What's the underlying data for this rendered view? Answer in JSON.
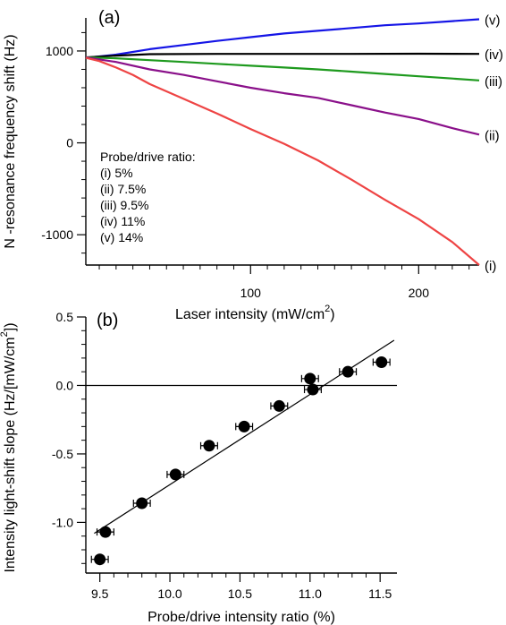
{
  "chart_data": [
    {
      "panel": "(a)",
      "type": "line",
      "xlabel": "Laser intensity (mW/cm",
      "xlabel_sup": "2",
      "xlabel_end": ")",
      "ylabel": "N -resonance frequency shift (Hz)",
      "xlim": [
        2,
        236
      ],
      "ylim": [
        -1330,
        1360
      ],
      "xticks": [
        100,
        200
      ],
      "yticks": [
        1000,
        0,
        -1000
      ],
      "grid": false,
      "legend": {
        "title": "Probe/drive ratio:",
        "entries": [
          "(i) 5%",
          "(ii) 7.5%",
          "(iii) 9.5%",
          "(iv) 11%",
          "(v) 14%"
        ],
        "position": "lower-left"
      },
      "series": [
        {
          "name": "(v)",
          "color": "#1515e6",
          "x": [
            2,
            20,
            40,
            60,
            80,
            100,
            120,
            140,
            160,
            180,
            200,
            220,
            236
          ],
          "y": [
            925,
            960,
            1020,
            1065,
            1110,
            1150,
            1190,
            1220,
            1250,
            1280,
            1300,
            1325,
            1345
          ]
        },
        {
          "name": "(iv)",
          "color": "#000000",
          "x": [
            2,
            20,
            40,
            80,
            120,
            160,
            200,
            236
          ],
          "y": [
            930,
            950,
            965,
            968,
            968,
            968,
            970,
            968
          ]
        },
        {
          "name": "(iii)",
          "color": "#1e9a1e",
          "x": [
            2,
            20,
            40,
            60,
            80,
            100,
            120,
            140,
            160,
            180,
            200,
            220,
            236
          ],
          "y": [
            930,
            920,
            900,
            880,
            860,
            840,
            820,
            800,
            775,
            750,
            725,
            700,
            680
          ]
        },
        {
          "name": "(ii)",
          "color": "#8a108a",
          "x": [
            2,
            20,
            40,
            60,
            80,
            100,
            120,
            140,
            160,
            180,
            200,
            220,
            236
          ],
          "y": [
            930,
            880,
            800,
            740,
            670,
            600,
            540,
            490,
            410,
            330,
            260,
            160,
            90
          ]
        },
        {
          "name": "(i)",
          "color": "#ee4444",
          "x": [
            2,
            10,
            20,
            30,
            40,
            60,
            80,
            100,
            120,
            140,
            160,
            180,
            200,
            220,
            236
          ],
          "y": [
            925,
            890,
            820,
            740,
            640,
            480,
            320,
            150,
            -10,
            -190,
            -400,
            -620,
            -830,
            -1080,
            -1330
          ]
        }
      ]
    },
    {
      "panel": "(b)",
      "type": "scatter",
      "xlabel": "Probe/drive intensity ratio (%)",
      "ylabel": "Intensity light-shift slope (Hz/[mW/cm",
      "ylabel_sup": "2",
      "ylabel_end": "])",
      "xlim": [
        9.4,
        11.62
      ],
      "ylim": [
        -1.37,
        0.5
      ],
      "xticks": [
        "9.5",
        "10.0",
        "10.5",
        "11.0",
        "11.5"
      ],
      "yticks": [
        "0.5",
        "0.0",
        "-0.5",
        "-1.0"
      ],
      "grid": false,
      "x": [
        9.5,
        9.54,
        9.8,
        10.04,
        10.28,
        10.53,
        10.78,
        11.0,
        11.02,
        11.27,
        11.51
      ],
      "y": [
        -1.27,
        -1.07,
        -0.86,
        -0.65,
        -0.44,
        -0.3,
        -0.15,
        0.05,
        -0.03,
        0.1,
        0.17
      ],
      "xerr": 0.06,
      "yerr": 0.025,
      "fit_line": {
        "x": [
          9.46,
          11.6
        ],
        "y": [
          -1.08,
          0.33
        ]
      },
      "zero_line": 0
    }
  ]
}
